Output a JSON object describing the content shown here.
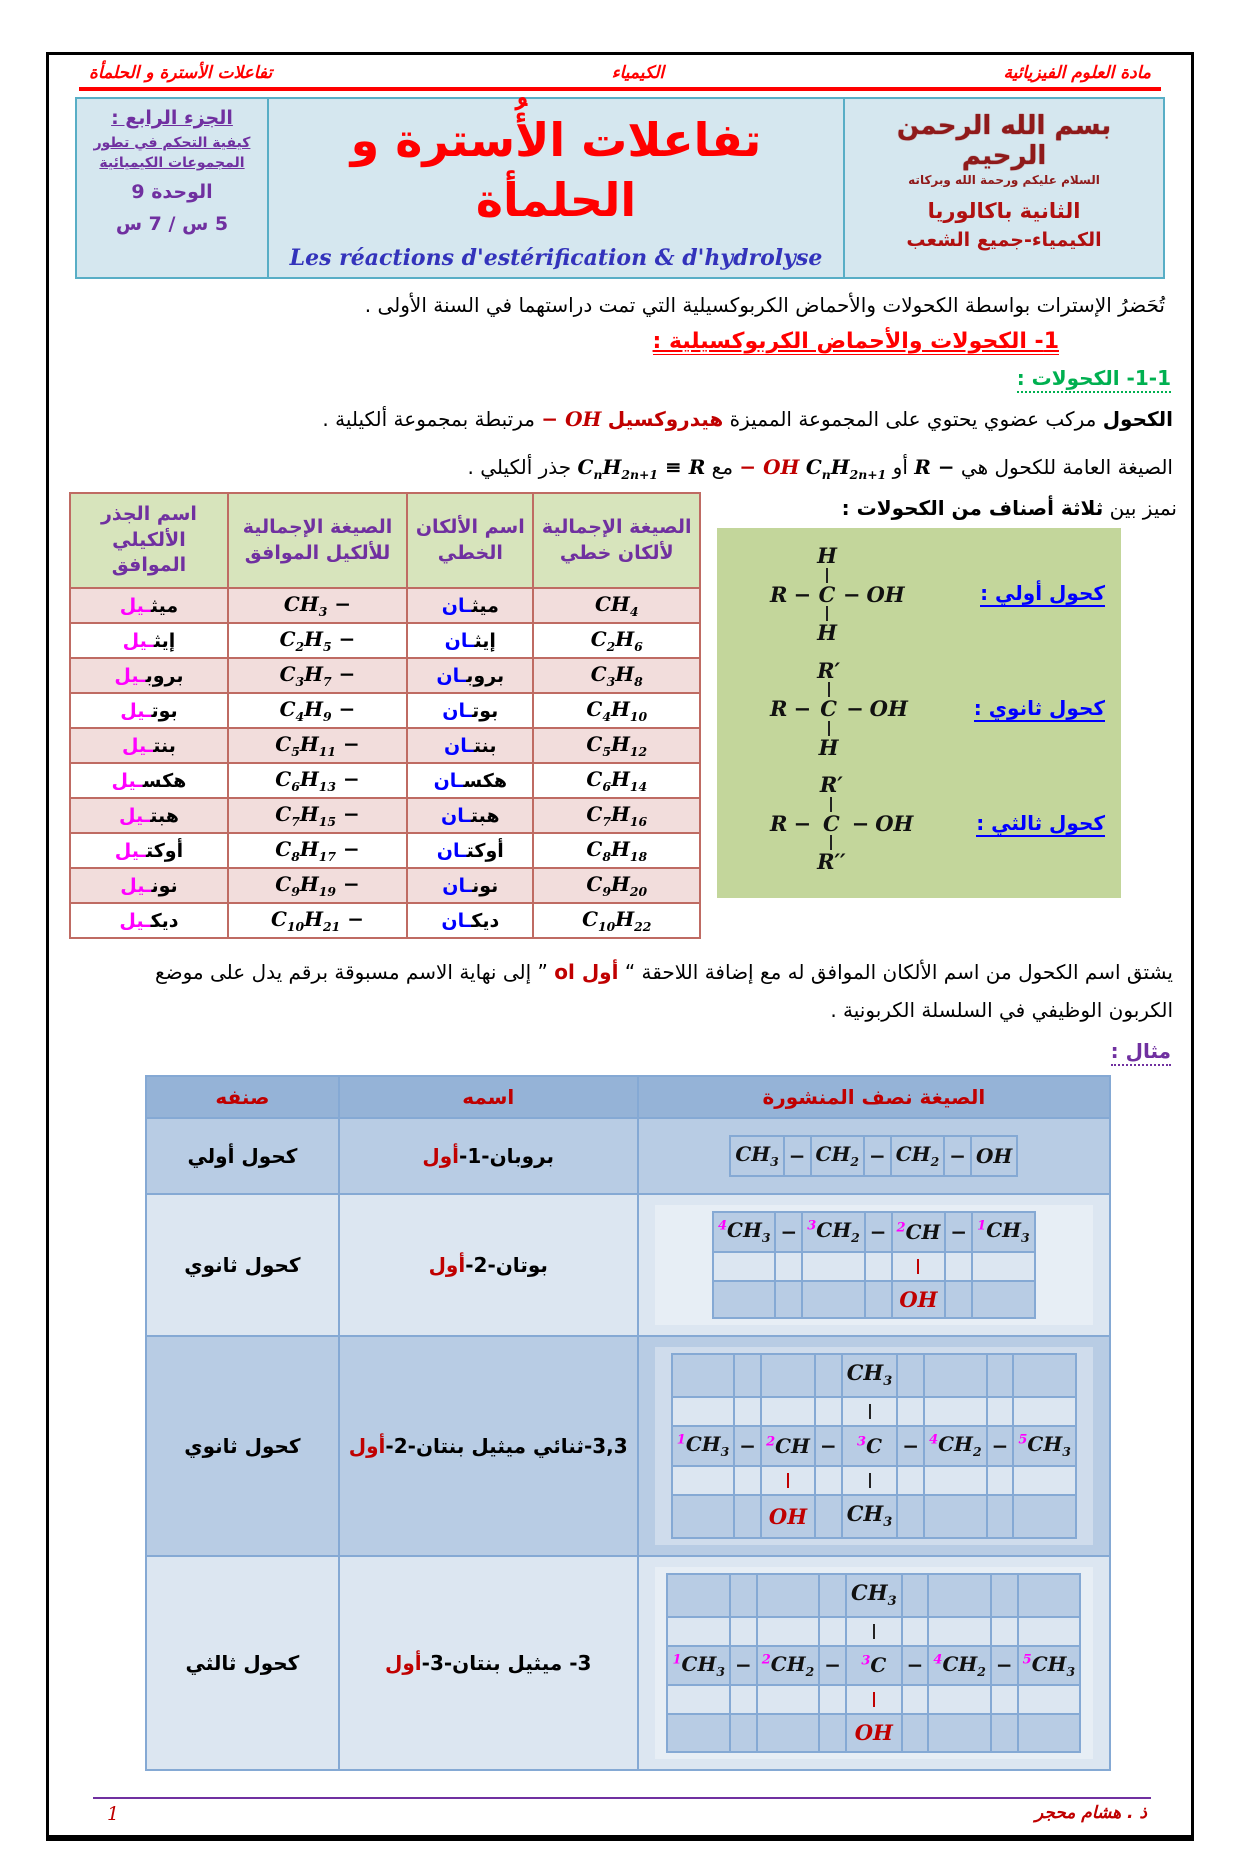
{
  "header": {
    "subject": "مادة العلوم الفيزيائية",
    "center": "الكيمياء",
    "topic": "تفاعلات الأسترة و الحلمأة"
  },
  "info_box": {
    "part": "الجزء الرابع :",
    "line2": "كيفية التحكم في تطور",
    "line3": "المجموعات الكيميائية",
    "unit": "الوحدة 9",
    "hours": "5 س / 7 س"
  },
  "title": {
    "arabic": "تفاعلات الأُسترة و الحلمأة",
    "french": "Les réactions d'estérification & d'hydrolyse"
  },
  "school_box": {
    "basmala": "بسم الله الرحمن الرحيم",
    "greeting": "السلام عليكم ورحمة الله وبركاته",
    "level": "الثانية باكالوريا",
    "stream": "الكيمياء-جميع الشعب"
  },
  "intro": "تُحَضرُ الإسترات بواسطة الكحولات والأحماض الكربوكسيلية التي تمت دراستهما في السنة الأولى .",
  "sections": {
    "s1": "1- الكحولات والأحماض الكربوكسيلية :",
    "s11": "1-1- الكحولات :"
  },
  "alcohol_def": {
    "lead": "الكحول",
    "t1": " مركب عضوي يحتوي على المجموعة المميزة ",
    "hydroxyl": "هيدروكسيل",
    "oh": "− OH",
    "t2": " مرتبطة بمجموعة ألكيلية ."
  },
  "general_formula": {
    "t1": "الصيغة العامة للكحول هي ",
    "f1": "R −",
    "t2": " أو ",
    "f2": "C_nH_2n+1",
    "f2oh": "− OH",
    "t3": " مع ",
    "f3": "C_nH_2n+1 ≡ R",
    "t4": " جذر ألكيلي ."
  },
  "classes_panel": {
    "intro_normal": "نميز بين ",
    "intro_bold": "ثلاثة أصناف من الكحولات :",
    "items": [
      {
        "label": "كحول أولي :",
        "structure": {
          "above": [
            {
              "col": 2,
              "t": "H",
              "bar": "black"
            }
          ],
          "chain": [
            {
              "t": "R"
            },
            {
              "t": "−"
            },
            {
              "t": "C",
              "c": "magenta"
            },
            {
              "t": "−",
              "c": "bred"
            },
            {
              "t": "OH",
              "c": "bred"
            }
          ],
          "below": [
            {
              "col": 2,
              "t": "H",
              "bar": "black"
            }
          ]
        }
      },
      {
        "label": "كحول ثانوي :",
        "structure": {
          "above": [
            {
              "col": 2,
              "t": "R′",
              "bar": "black"
            }
          ],
          "chain": [
            {
              "t": "R"
            },
            {
              "t": "−"
            },
            {
              "t": "C",
              "c": "magenta"
            },
            {
              "t": "−",
              "c": "bred"
            },
            {
              "t": "OH",
              "c": "bred"
            }
          ],
          "below": [
            {
              "col": 2,
              "t": "H",
              "bar": "black"
            }
          ]
        }
      },
      {
        "label": "كحول ثالثي :",
        "structure": {
          "above": [
            {
              "col": 2,
              "t": "R′",
              "bar": "black"
            }
          ],
          "chain": [
            {
              "t": "R"
            },
            {
              "t": "−"
            },
            {
              "t": "C",
              "c": "magenta"
            },
            {
              "t": "−",
              "c": "bred"
            },
            {
              "t": "OH",
              "c": "bred"
            }
          ],
          "below": [
            {
              "col": 2,
              "t": "R′′",
              "bar": "black"
            }
          ]
        }
      }
    ]
  },
  "alkane_table": {
    "headers": [
      "الصيغة الإجمالية لألكان خطي",
      "اسم الألكان الخطي",
      "الصيغة الإجمالية للألكيل الموافق",
      "اسم الجذر الألكيلي الموافق"
    ],
    "rows": [
      {
        "alkane_formula": "CH_4",
        "alkane_base": "ميث",
        "alkane_suffix": "ـان",
        "alkyl_formula": "CH_3 −",
        "alkyl_base": "ميث",
        "alkyl_suffix": "ـيل"
      },
      {
        "alkane_formula": "C_2H_6",
        "alkane_base": "إيث",
        "alkane_suffix": "ـان",
        "alkyl_formula": "C_2H_5 −",
        "alkyl_base": "إيث",
        "alkyl_suffix": "ـيل"
      },
      {
        "alkane_formula": "C_3H_8",
        "alkane_base": "بروب",
        "alkane_suffix": "ـان",
        "alkyl_formula": "C_3H_7 −",
        "alkyl_base": "بروب",
        "alkyl_suffix": "ـيل"
      },
      {
        "alkane_formula": "C_4H_10",
        "alkane_base": "بوت",
        "alkane_suffix": "ـان",
        "alkyl_formula": "C_4H_9 −",
        "alkyl_base": "بوت",
        "alkyl_suffix": "ـيل"
      },
      {
        "alkane_formula": "C_5H_12",
        "alkane_base": "بنت",
        "alkane_suffix": "ـان",
        "alkyl_formula": "C_5H_11 −",
        "alkyl_base": "بنت",
        "alkyl_suffix": "ـيل"
      },
      {
        "alkane_formula": "C_6H_14",
        "alkane_base": "هكس",
        "alkane_suffix": "ـان",
        "alkyl_formula": "C_6H_13 −",
        "alkyl_base": "هكس",
        "alkyl_suffix": "ـيل"
      },
      {
        "alkane_formula": "C_7H_16",
        "alkane_base": "هبت",
        "alkane_suffix": "ـان",
        "alkyl_formula": "C_7H_15 −",
        "alkyl_base": "هبت",
        "alkyl_suffix": "ـيل"
      },
      {
        "alkane_formula": "C_8H_18",
        "alkane_base": "أوكت",
        "alkane_suffix": "ـان",
        "alkyl_formula": "C_8H_17 −",
        "alkyl_base": "أوكت",
        "alkyl_suffix": "ـيل"
      },
      {
        "alkane_formula": "C_9H_20",
        "alkane_base": "نون",
        "alkane_suffix": "ـان",
        "alkyl_formula": "C_9H_19 −",
        "alkyl_base": "نون",
        "alkyl_suffix": "ـيل"
      },
      {
        "alkane_formula": "C_10H_22",
        "alkane_base": "ديك",
        "alkane_suffix": "ـان",
        "alkyl_formula": "C_10H_21 −",
        "alkyl_base": "ديك",
        "alkyl_suffix": "ـيل"
      }
    ]
  },
  "naming_rule": {
    "t1": "يشتق اسم الكحول من اسم الألكان الموافق له مع إضافة اللاحقة “ ",
    "suffix": "أول ol",
    "t2": " ” إلى نهاية الاسم مسبوقة برقم يدل على موضع الكربون الوظيفي في السلسلة الكربونية ."
  },
  "example_label": "مثال :",
  "example_table": {
    "headers": [
      "الصيغة نصف المنشورة",
      "اسمه",
      "صنفه"
    ],
    "rows": [
      {
        "class_label": "كحول أولي",
        "name_base": "بروبان-1-",
        "name_suffix": "أول",
        "structure": {
          "chain": [
            {
              "t": "CH_3"
            },
            {
              "t": "−"
            },
            {
              "t": "CH_2"
            },
            {
              "t": "−"
            },
            {
              "t": "CH_2"
            },
            {
              "t": "−",
              "c": "red"
            },
            {
              "t": "OH",
              "c": "red"
            }
          ]
        }
      },
      {
        "class_label": "كحول ثانوي",
        "name_base": "بوتان-2-",
        "name_suffix": "أول",
        "structure": {
          "chain": [
            {
              "t": "CH_3",
              "n": "4"
            },
            {
              "t": "−"
            },
            {
              "t": "CH_2",
              "n": "3"
            },
            {
              "t": "−"
            },
            {
              "t": "CH",
              "n": "2"
            },
            {
              "t": "−"
            },
            {
              "t": "CH_3",
              "n": "1"
            }
          ],
          "below": [
            {
              "col": 4,
              "t": "OH",
              "c": "red",
              "bar": "red"
            }
          ]
        }
      },
      {
        "class_label": "كحول ثانوي",
        "name_base": "3,3-ثنائي ميثيل بنتان-2-",
        "name_suffix": "أول",
        "structure": {
          "above": [
            {
              "col": 4,
              "t": "CH_3",
              "bar": "black"
            }
          ],
          "chain": [
            {
              "t": "CH_3",
              "n": "1"
            },
            {
              "t": "−"
            },
            {
              "t": "CH",
              "n": "2"
            },
            {
              "t": "−"
            },
            {
              "t": "C",
              "n": "3"
            },
            {
              "t": "−"
            },
            {
              "t": "CH_2",
              "n": "4"
            },
            {
              "t": "−"
            },
            {
              "t": "CH_3",
              "n": "5"
            }
          ],
          "below": [
            {
              "col": 2,
              "t": "OH",
              "c": "red",
              "bar": "red"
            },
            {
              "col": 4,
              "t": "CH_3",
              "bar": "black"
            }
          ]
        }
      },
      {
        "class_label": "كحول ثالثي",
        "name_base": "3- ميثيل بنتان-3-",
        "name_suffix": "أول",
        "structure": {
          "above": [
            {
              "col": 4,
              "t": "CH_3",
              "bar": "black"
            }
          ],
          "chain": [
            {
              "t": "CH_3",
              "n": "1"
            },
            {
              "t": "−"
            },
            {
              "t": "CH_2",
              "n": "2"
            },
            {
              "t": "−"
            },
            {
              "t": "C",
              "n": "3"
            },
            {
              "t": "−"
            },
            {
              "t": "CH_2",
              "n": "4"
            },
            {
              "t": "−"
            },
            {
              "t": "CH_3",
              "n": "5"
            }
          ],
          "below": [
            {
              "col": 4,
              "t": "OH",
              "c": "red",
              "bar": "red"
            }
          ]
        }
      }
    ]
  },
  "footer": {
    "teacher": "ذ . هشام محجر",
    "page": "1"
  },
  "colors": {
    "accent_red": "#ff0000",
    "dark_red": "#c00000",
    "purple": "#7030a0",
    "green": "#00b050",
    "blue": "#0000ff",
    "magenta": "#ff00ff",
    "table1_border": "#bf6b63",
    "table1_header_bg": "#d7e4bc",
    "table1_row_pink": "#f2dddc",
    "panel_green_bg": "#c3d69b",
    "table2_header_bg": "#95b3d7",
    "table2_row_a": "#b8cce4",
    "table2_row_b": "#dce6f1",
    "head_bg": "#d5e7ef",
    "head_border": "#58aec6"
  }
}
